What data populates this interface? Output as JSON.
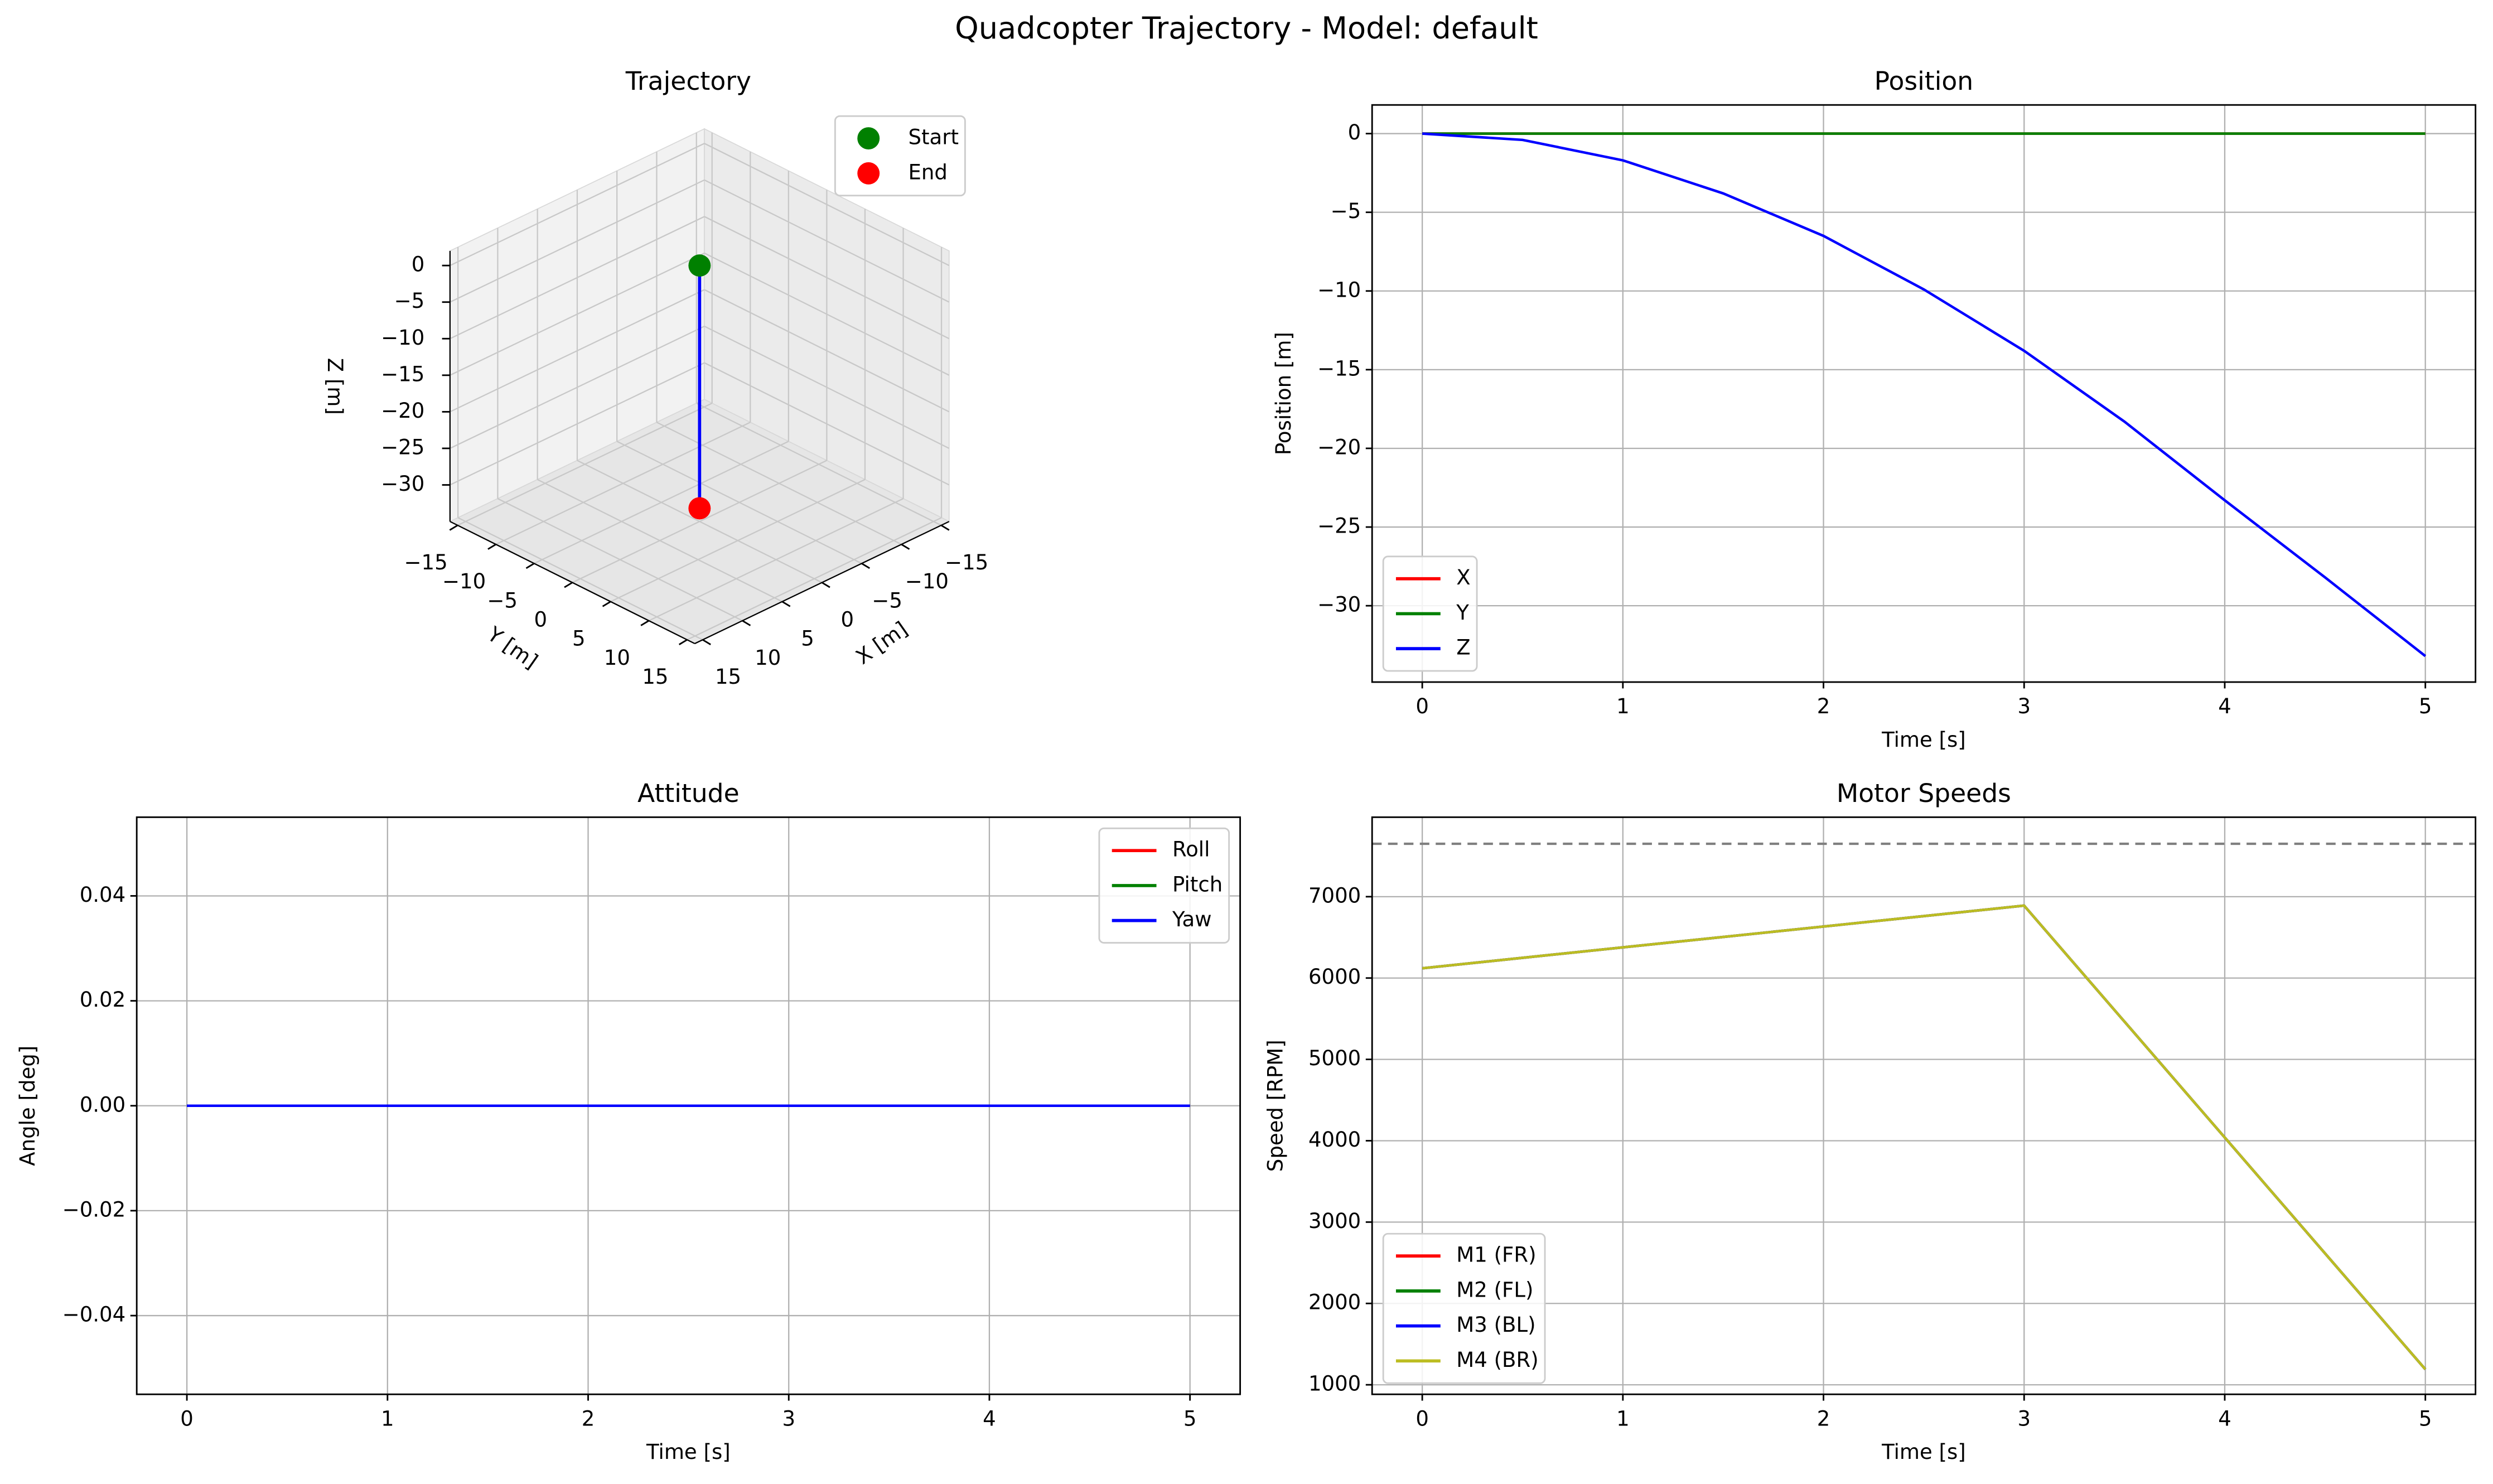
{
  "title": "Quadcopter Trajectory - Model: default",
  "chart_data": [
    {
      "type": "line3d",
      "title": "Trajectory",
      "xlabel": "X [m]",
      "ylabel": "Y [m]",
      "zlabel": "Z [m]",
      "xlim": [
        -16,
        16
      ],
      "ylim": [
        -16,
        16
      ],
      "zlim": [
        -35,
        2
      ],
      "xticks": [
        {
          "value": -15,
          "label": "−15"
        },
        {
          "value": -10,
          "label": "−10"
        },
        {
          "value": -5,
          "label": "−5"
        },
        0,
        5,
        10,
        15
      ],
      "yticks": [
        {
          "value": -15,
          "label": "−15"
        },
        {
          "value": -10,
          "label": "−10"
        },
        {
          "value": -5,
          "label": "−5"
        },
        0,
        5,
        10,
        15
      ],
      "zticks": [
        0,
        {
          "value": -5,
          "label": "−5"
        },
        {
          "value": -10,
          "label": "−10"
        },
        {
          "value": -15,
          "label": "−15"
        },
        {
          "value": -20,
          "label": "−20"
        },
        {
          "value": -25,
          "label": "−25"
        },
        {
          "value": -30,
          "label": "−30"
        }
      ],
      "grid": true,
      "legend": "upper right",
      "line": {
        "color": "blue",
        "x": [
          0,
          0
        ],
        "y": [
          0,
          0
        ],
        "z": [
          0,
          -33.2
        ]
      },
      "points": [
        {
          "name": "Start",
          "color": "green",
          "x": 0,
          "y": 0,
          "z": 0
        },
        {
          "name": "End",
          "color": "red",
          "x": 0,
          "y": 0,
          "z": -33.2
        }
      ]
    },
    {
      "type": "line",
      "title": "Position",
      "xlabel": "Time [s]",
      "ylabel": "Position [m]",
      "x": [
        0,
        0.5,
        1,
        1.5,
        2,
        2.5,
        3,
        3.5,
        4,
        4.5,
        5
      ],
      "xlim": [
        -0.25,
        5.25
      ],
      "ylim": [
        -34.85,
        1.82
      ],
      "xticks": [
        0,
        1,
        2,
        3,
        4,
        5
      ],
      "yticks": [
        0,
        {
          "value": -5,
          "label": "−5"
        },
        {
          "value": -10,
          "label": "−10"
        },
        {
          "value": -15,
          "label": "−15"
        },
        {
          "value": -20,
          "label": "−20"
        },
        {
          "value": -25,
          "label": "−25"
        },
        {
          "value": -30,
          "label": "−30"
        }
      ],
      "grid": true,
      "legend": "lower left",
      "series": [
        {
          "name": "X",
          "color": "red",
          "values": [
            0,
            0,
            0,
            0,
            0,
            0,
            0,
            0,
            0,
            0,
            0
          ]
        },
        {
          "name": "Y",
          "color": "green",
          "values": [
            0,
            0,
            0,
            0,
            0,
            0,
            0,
            0,
            0,
            0,
            0
          ]
        },
        {
          "name": "Z",
          "color": "blue",
          "values": [
            0,
            -0.4,
            -1.7,
            -3.8,
            -6.5,
            -9.9,
            -13.8,
            -18.3,
            -23.3,
            -28.2,
            -33.2
          ]
        }
      ]
    },
    {
      "type": "line",
      "title": "Attitude",
      "xlabel": "Time [s]",
      "ylabel": "Angle [deg]",
      "x": [
        0,
        5
      ],
      "xlim": [
        -0.25,
        5.25
      ],
      "ylim": [
        -0.055,
        0.055
      ],
      "xticks": [
        0,
        1,
        2,
        3,
        4,
        5
      ],
      "yticks": [
        {
          "value": -0.04,
          "label": "−0.04"
        },
        {
          "value": -0.02,
          "label": "−0.02"
        },
        {
          "value": 0,
          "label": "0.00"
        },
        0.02,
        0.04
      ],
      "grid": true,
      "legend": "upper right",
      "series": [
        {
          "name": "Roll",
          "color": "red",
          "values": [
            0,
            0
          ]
        },
        {
          "name": "Pitch",
          "color": "green",
          "values": [
            0,
            0
          ]
        },
        {
          "name": "Yaw",
          "color": "blue",
          "values": [
            0,
            0
          ]
        }
      ]
    },
    {
      "type": "line",
      "title": "Motor Speeds",
      "xlabel": "Time [s]",
      "ylabel": "Speed [RPM]",
      "x": [
        0,
        1,
        2,
        3,
        4,
        5
      ],
      "xlim": [
        -0.25,
        5.25
      ],
      "ylim": [
        883,
        7977
      ],
      "xticks": [
        0,
        1,
        2,
        3,
        4,
        5
      ],
      "yticks": [
        1000,
        2000,
        3000,
        4000,
        5000,
        6000,
        7000
      ],
      "grid": true,
      "legend": "lower left",
      "reference_line": {
        "value": 7650,
        "color": "gray"
      },
      "series": [
        {
          "name": "M1 (FR)",
          "color": "red",
          "values": [
            6120,
            6377,
            6633,
            6890,
            4040,
            1190
          ]
        },
        {
          "name": "M2 (FL)",
          "color": "green",
          "values": [
            6120,
            6377,
            6633,
            6890,
            4040,
            1190
          ]
        },
        {
          "name": "M3 (BL)",
          "color": "blue",
          "values": [
            6120,
            6377,
            6633,
            6890,
            4040,
            1190
          ]
        },
        {
          "name": "M4 (BR)",
          "color": "#bcbd22",
          "values": [
            6120,
            6377,
            6633,
            6890,
            4040,
            1190
          ]
        }
      ]
    }
  ]
}
